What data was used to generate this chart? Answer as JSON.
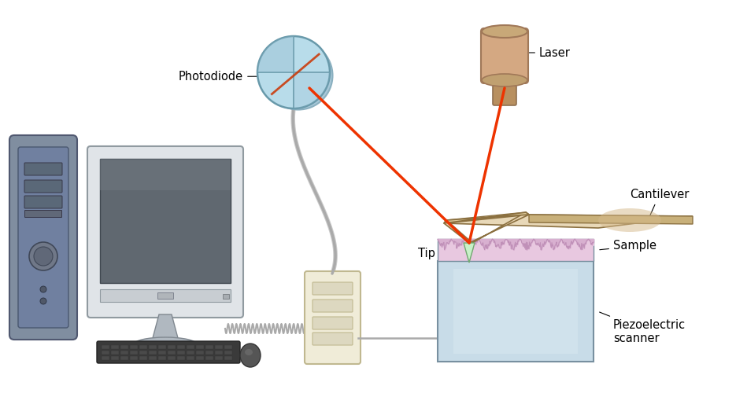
{
  "background_color": "#ffffff",
  "labels": {
    "photodiode": "Photodiode",
    "laser": "Laser",
    "cantilever": "Cantilever",
    "tip": "Tip",
    "sample": "Sample",
    "piezo": "Piezoelectric\nscanner"
  },
  "colors": {
    "photodiode_fill": "#b8dcea",
    "photodiode_line": "#6899aa",
    "laser_body": "#d4a882",
    "laser_top": "#c8a070",
    "cantilever_fill": "#e8d4b0",
    "cantilever_edge": "#8b7040",
    "cantilever_pad": "#e0c8a0",
    "tip_fill": "#c8eec8",
    "tip_edge": "#80b080",
    "sample_fill": "#e8c8e0",
    "sample_bumps": "#d4a8cc",
    "piezo_front": "#b8ccd8",
    "piezo_front2": "#c8dce8",
    "piezo_top": "#d0dce8",
    "piezo_edge": "#7890a0",
    "computer_body": "#7888a0",
    "monitor_bezel": "#d8dce0",
    "monitor_screen": "#606870",
    "box_fill": "#f0ecd8",
    "box_edge": "#c0b890",
    "laser_beam": "#ee3300",
    "cable_gray": "#aaaaaa",
    "text_color": "#000000"
  },
  "figsize": [
    9.35,
    5.05
  ],
  "dpi": 100
}
